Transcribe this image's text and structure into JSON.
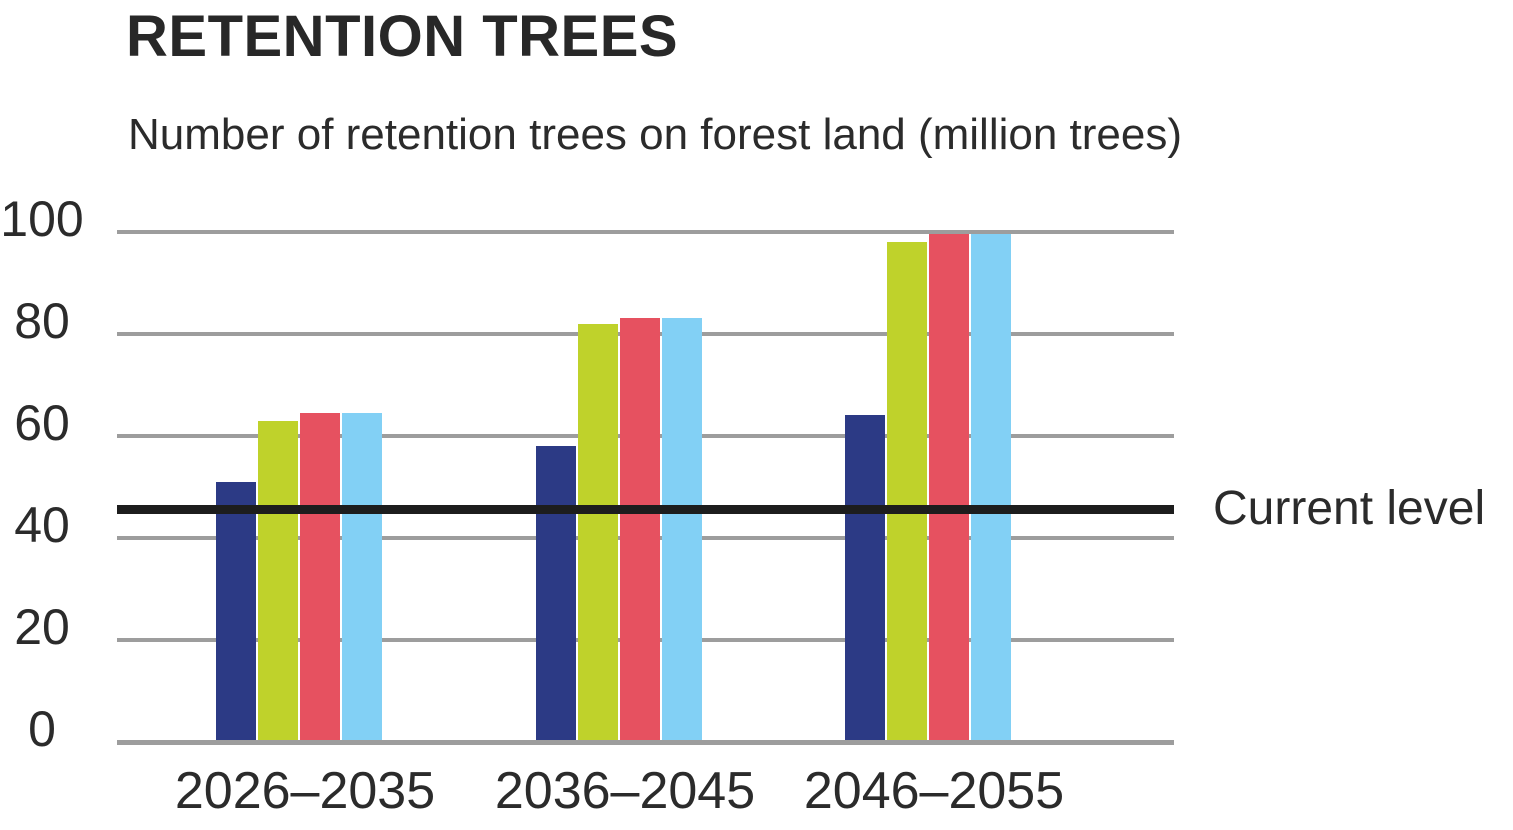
{
  "chart_data": {
    "type": "bar",
    "title": "RETENTION TREES",
    "subtitle": "Number of retention trees on forest land (million trees)",
    "categories": [
      "2026–2035",
      "2036–2045",
      "2046–2055"
    ],
    "series": [
      {
        "name": "dark-blue-bar-series",
        "color": "#2c3a85",
        "values": [
          51,
          58,
          64
        ]
      },
      {
        "name": "yellow-green-bar-series",
        "color": "#bfd22b",
        "values": [
          63,
          82,
          98
        ]
      },
      {
        "name": "red-bar-series",
        "color": "#e65160",
        "values": [
          64.5,
          83,
          99.5
        ]
      },
      {
        "name": "light-blue-bar-series",
        "color": "#82d0f5",
        "values": [
          64.5,
          83,
          99.5
        ]
      }
    ],
    "reference_line": {
      "label": "Current level",
      "value": 45.5,
      "color": "#1d1d1d"
    },
    "xlabel": "",
    "ylabel": "",
    "ylim": [
      0,
      100
    ],
    "yticks": [
      0,
      20,
      40,
      60,
      80,
      100
    ],
    "grid": true,
    "gridline_color": "#9d9d9d",
    "legend": "none",
    "text_color": "#2b2b2b",
    "background_color": "#ffffff"
  }
}
